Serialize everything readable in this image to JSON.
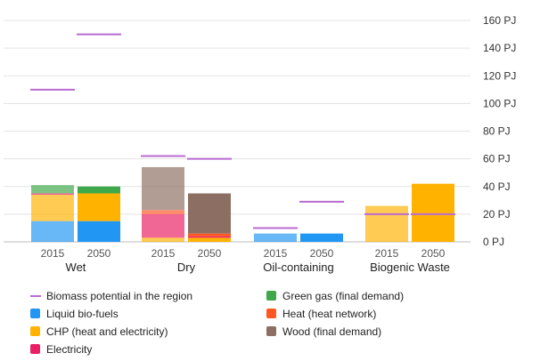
{
  "chart_data": {
    "type": "bar",
    "stacked": true,
    "y_unit": "PJ",
    "ylim": [
      0,
      160
    ],
    "yticks": [
      "0 PJ",
      "20 PJ",
      "40 PJ",
      "60 PJ",
      "80 PJ",
      "100 PJ",
      "120 PJ",
      "140 PJ",
      "160 PJ"
    ],
    "ytick_values": [
      0,
      20,
      40,
      60,
      80,
      100,
      120,
      140,
      160
    ],
    "axis_position": "right",
    "grid": true,
    "groups": [
      {
        "name": "Wet",
        "bars": [
          {
            "year": "2015",
            "segments": {
              "liquid": 15,
              "chp": 19,
              "elec": 1,
              "green": 6
            },
            "potential": 110
          },
          {
            "year": "2050",
            "segments": {
              "liquid": 15,
              "chp": 20,
              "green": 5
            },
            "potential": 150
          }
        ]
      },
      {
        "name": "Dry",
        "bars": [
          {
            "year": "2015",
            "segments": {
              "chp": 3,
              "elec": 17,
              "heat": 3,
              "wood": 31
            },
            "potential": 62
          },
          {
            "year": "2050",
            "segments": {
              "chp": 3,
              "elec": 1,
              "heat": 2,
              "wood": 29
            },
            "potential": 60
          }
        ]
      },
      {
        "name": "Oil-containing",
        "bars": [
          {
            "year": "2015",
            "segments": {
              "liquid": 6
            },
            "potential": 10
          },
          {
            "year": "2050",
            "segments": {
              "liquid": 6
            },
            "potential": 29
          }
        ]
      },
      {
        "name": "Biogenic Waste",
        "bars": [
          {
            "year": "2015",
            "segments": {
              "chp": 26
            },
            "potential": 20
          },
          {
            "year": "2050",
            "segments": {
              "chp": 42
            },
            "potential": 20
          }
        ]
      }
    ],
    "series": [
      {
        "key": "potential",
        "name": "Biomass potential in the region",
        "color": "#b86bd0",
        "kind": "line"
      },
      {
        "key": "green",
        "name": "Green gas (final demand)",
        "color": "#3fa84a",
        "kind": "bar"
      },
      {
        "key": "liquid",
        "name": "Liquid bio-fuels",
        "color": "#2196f3",
        "kind": "bar"
      },
      {
        "key": "heat",
        "name": "Heat (heat network)",
        "color": "#ff5722",
        "kind": "bar"
      },
      {
        "key": "chp",
        "name": "CHP (heat and electricity)",
        "color": "#ffb300",
        "kind": "bar"
      },
      {
        "key": "wood",
        "name": "Wood (final demand)",
        "color": "#8d6e63",
        "kind": "bar"
      },
      {
        "key": "elec",
        "name": "Electricity",
        "color": "#e91e63",
        "kind": "bar"
      }
    ],
    "stack_order": [
      "liquid",
      "chp",
      "elec",
      "heat",
      "wood",
      "green"
    ]
  }
}
